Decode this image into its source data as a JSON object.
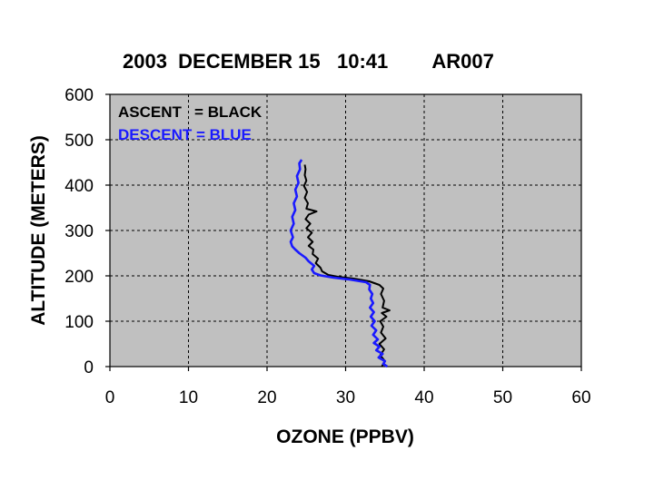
{
  "chart_data": {
    "type": "line",
    "title": "2003  DECEMBER 15   10:41        AR007",
    "xlabel": "OZONE (PPBV)",
    "ylabel": "ALTITUDE (METERS)",
    "xlim": [
      0,
      60
    ],
    "ylim": [
      0,
      600
    ],
    "xticks": [
      "0",
      "10",
      "20",
      "30",
      "40",
      "50",
      "60"
    ],
    "yticks": [
      "0",
      "100",
      "200",
      "300",
      "400",
      "500",
      "600"
    ],
    "grid": true,
    "plot_background": "#c0c0c0",
    "legend": {
      "placement": "top-left",
      "entries": [
        {
          "text": "ASCENT   = BLACK",
          "color": "#000000"
        },
        {
          "text": "DESCENT = BLUE",
          "color": "#1a1aff"
        }
      ]
    },
    "series": [
      {
        "color": "#000000",
        "points": [
          [
            34.6,
            0
          ],
          [
            35.0,
            12
          ],
          [
            34.4,
            25
          ],
          [
            34.9,
            38
          ],
          [
            34.3,
            50
          ],
          [
            35.1,
            62
          ],
          [
            34.5,
            75
          ],
          [
            34.8,
            88
          ],
          [
            34.4,
            100
          ],
          [
            35.2,
            110
          ],
          [
            34.6,
            118
          ],
          [
            35.6,
            124
          ],
          [
            34.7,
            130
          ],
          [
            34.9,
            145
          ],
          [
            34.5,
            160
          ],
          [
            34.8,
            172
          ],
          [
            34.3,
            180
          ],
          [
            33.0,
            188
          ],
          [
            31.0,
            194
          ],
          [
            29.0,
            198
          ],
          [
            27.8,
            202
          ],
          [
            27.0,
            210
          ],
          [
            26.8,
            218
          ],
          [
            26.2,
            228
          ],
          [
            26.5,
            238
          ],
          [
            25.8,
            248
          ],
          [
            25.9,
            258
          ],
          [
            25.3,
            266
          ],
          [
            25.8,
            275
          ],
          [
            25.2,
            285
          ],
          [
            25.7,
            295
          ],
          [
            25.0,
            305
          ],
          [
            25.5,
            315
          ],
          [
            24.9,
            325
          ],
          [
            25.3,
            335
          ],
          [
            26.3,
            342
          ],
          [
            25.0,
            348
          ],
          [
            25.2,
            360
          ],
          [
            24.8,
            372
          ],
          [
            25.1,
            385
          ],
          [
            24.7,
            398
          ],
          [
            25.0,
            410
          ],
          [
            24.8,
            422
          ],
          [
            24.9,
            435
          ],
          [
            24.8,
            445
          ]
        ]
      },
      {
        "color": "#1a1aff",
        "points": [
          [
            35.3,
            0
          ],
          [
            34.8,
            6
          ],
          [
            35.0,
            12
          ],
          [
            34.2,
            20
          ],
          [
            34.7,
            28
          ],
          [
            33.9,
            36
          ],
          [
            34.3,
            44
          ],
          [
            33.6,
            52
          ],
          [
            34.1,
            60
          ],
          [
            33.5,
            70
          ],
          [
            33.9,
            80
          ],
          [
            33.3,
            90
          ],
          [
            33.7,
            100
          ],
          [
            33.2,
            110
          ],
          [
            33.6,
            120
          ],
          [
            33.1,
            130
          ],
          [
            33.5,
            140
          ],
          [
            33.2,
            150
          ],
          [
            33.4,
            160
          ],
          [
            33.0,
            170
          ],
          [
            33.1,
            180
          ],
          [
            32.6,
            186
          ],
          [
            30.5,
            192
          ],
          [
            28.5,
            196
          ],
          [
            26.8,
            201
          ],
          [
            26.0,
            206
          ],
          [
            25.7,
            214
          ],
          [
            26.0,
            222
          ],
          [
            25.3,
            232
          ],
          [
            24.9,
            240
          ],
          [
            24.1,
            250
          ],
          [
            23.6,
            258
          ],
          [
            23.2,
            265
          ],
          [
            23.0,
            275
          ],
          [
            23.3,
            285
          ],
          [
            23.0,
            300
          ],
          [
            23.4,
            315
          ],
          [
            23.2,
            330
          ],
          [
            23.6,
            345
          ],
          [
            23.4,
            360
          ],
          [
            23.8,
            375
          ],
          [
            23.6,
            390
          ],
          [
            24.0,
            405
          ],
          [
            23.8,
            420
          ],
          [
            24.2,
            435
          ],
          [
            24.1,
            448
          ],
          [
            24.4,
            456
          ]
        ]
      }
    ]
  }
}
